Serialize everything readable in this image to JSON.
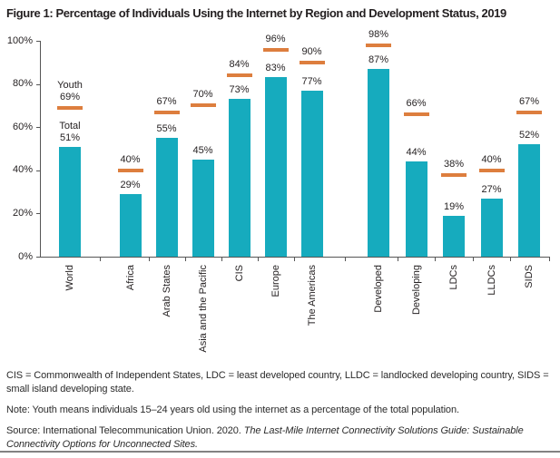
{
  "figure": {
    "title": "Figure 1: Percentage of Individuals Using the Internet by Region and Development Status, 2019"
  },
  "chart_data": {
    "type": "bar",
    "title": "Figure 1: Percentage of Individuals Using the Internet by Region and Development Status, 2019",
    "categories": [
      "World",
      "Africa",
      "Arab States",
      "Asia and the Pacific",
      "CIS",
      "Europe",
      "The Americas",
      "Developed",
      "Developing",
      "LDCs",
      "LLDCs",
      "SIDS"
    ],
    "series": [
      {
        "name": "Total",
        "marker": "bar",
        "color": "#16abbe",
        "values": [
          51,
          29,
          55,
          45,
          73,
          83,
          77,
          87,
          44,
          19,
          27,
          52
        ]
      },
      {
        "name": "Youth",
        "marker": "dash",
        "color": "#dd7e3e",
        "values": [
          69,
          40,
          67,
          70,
          84,
          96,
          90,
          98,
          66,
          38,
          40,
          67
        ]
      }
    ],
    "value_label_format": "{value}%",
    "annotated_category": "World",
    "group_gap_after": [
      "World",
      "The Americas"
    ],
    "xlabel": "",
    "ylabel": "",
    "ylim": [
      0,
      100
    ],
    "yticks": [
      {
        "v": 0,
        "label": "0%"
      },
      {
        "v": 20,
        "label": "20%"
      },
      {
        "v": 40,
        "label": "40%"
      },
      {
        "v": 60,
        "label": "60%"
      },
      {
        "v": 80,
        "label": "80%"
      },
      {
        "v": 100,
        "label": "100%"
      }
    ],
    "grid": false,
    "legend": "inline annotation on first category (Youth above dash, Total above bar)"
  },
  "notes": {
    "abbreviations": "CIS = Commonwealth of Independent States, LDC = least developed country, LLDC = landlocked developing country, SIDS = small island developing state.",
    "note": "Note: Youth means individuals 15–24 years old using the internet as a percentage of the total population.",
    "source_prefix": "Source: International Telecommunication Union. 2020. ",
    "source_title": "The Last-Mile Internet Connectivity Solutions Guide: Sustainable Connectivity Options for Unconnected Sites."
  },
  "colors": {
    "bar": "#16abbe",
    "youth_dash": "#dd7e3e",
    "text": "#231f20",
    "axis": "#555555",
    "rule": "#828282"
  }
}
